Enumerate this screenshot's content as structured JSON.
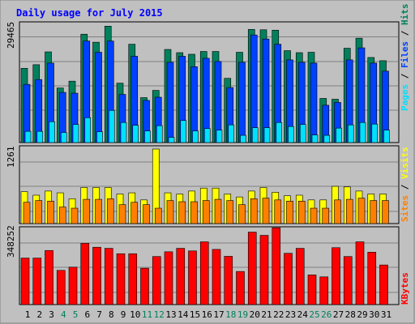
{
  "chart_data": [
    {
      "type": "bar",
      "title": "Daily usage for July 2015",
      "panel": "Pages / Files / Hits",
      "categories": [
        "1",
        "2",
        "3",
        "4",
        "5",
        "6",
        "7",
        "8",
        "9",
        "10",
        "11",
        "12",
        "13",
        "14",
        "15",
        "16",
        "17",
        "18",
        "19",
        "20",
        "21",
        "22",
        "23",
        "24",
        "25",
        "26",
        "27",
        "28",
        "29",
        "30",
        "31"
      ],
      "weekend_days": [
        "4",
        "5",
        "11",
        "12",
        "18",
        "19",
        "25",
        "26"
      ],
      "ymax_label": "29465",
      "ylim": [
        0,
        29465
      ],
      "grid": true,
      "series": [
        {
          "name": "Hits",
          "color": "#00805c",
          "values": [
            18500,
            19400,
            22600,
            13600,
            15300,
            27000,
            25000,
            29000,
            14800,
            24500,
            11200,
            13000,
            23200,
            22400,
            22000,
            22700,
            22700,
            16000,
            22500,
            28200,
            28100,
            28000,
            22900,
            22400,
            22500,
            11000,
            10800,
            23500,
            26000,
            21200,
            20400
          ]
        },
        {
          "name": "Files",
          "color": "#0040ff",
          "values": [
            14500,
            15700,
            19800,
            12500,
            12300,
            25300,
            22500,
            25300,
            12000,
            21500,
            10500,
            11300,
            20000,
            21500,
            18900,
            21000,
            20200,
            13700,
            20000,
            26800,
            25800,
            24500,
            20600,
            20000,
            19800,
            9300,
            10000,
            20600,
            23600,
            19800,
            17800
          ]
        },
        {
          "name": "Pages",
          "color": "#00e0ff",
          "values": [
            2800,
            2800,
            5200,
            2500,
            4500,
            6200,
            2700,
            8000,
            5000,
            4300,
            2900,
            4200,
            1300,
            5500,
            2900,
            3500,
            3100,
            4400,
            1800,
            3700,
            3700,
            5000,
            4000,
            4500,
            1900,
            1800,
            3600,
            4400,
            5000,
            4600,
            3100
          ]
        }
      ]
    },
    {
      "type": "bar",
      "panel": "Sites / Visits",
      "categories": [
        "1",
        "2",
        "3",
        "4",
        "5",
        "6",
        "7",
        "8",
        "9",
        "10",
        "11",
        "12",
        "13",
        "14",
        "15",
        "16",
        "17",
        "18",
        "19",
        "20",
        "21",
        "22",
        "23",
        "24",
        "25",
        "26",
        "27",
        "28",
        "29",
        "30",
        "31"
      ],
      "ymax_label": "1261",
      "ylim": [
        0,
        1261
      ],
      "grid": true,
      "series": [
        {
          "name": "Visits",
          "color": "#ffff00",
          "values": [
            540,
            480,
            550,
            520,
            420,
            610,
            610,
            610,
            500,
            520,
            400,
            1261,
            520,
            500,
            550,
            600,
            600,
            500,
            450,
            550,
            610,
            530,
            470,
            480,
            400,
            400,
            630,
            620,
            550,
            500,
            500
          ]
        },
        {
          "name": "Sites",
          "color": "#ff8000",
          "values": [
            360,
            390,
            380,
            280,
            260,
            410,
            410,
            420,
            320,
            360,
            320,
            260,
            390,
            370,
            370,
            390,
            410,
            390,
            320,
            420,
            430,
            400,
            380,
            380,
            260,
            260,
            400,
            410,
            430,
            390,
            390
          ]
        }
      ]
    },
    {
      "type": "bar",
      "panel": "KBytes",
      "categories": [
        "1",
        "2",
        "3",
        "4",
        "5",
        "6",
        "7",
        "8",
        "9",
        "10",
        "11",
        "12",
        "13",
        "14",
        "15",
        "16",
        "17",
        "18",
        "19",
        "20",
        "21",
        "22",
        "23",
        "24",
        "25",
        "26",
        "27",
        "28",
        "29",
        "30",
        "31"
      ],
      "ymax_label": "348252",
      "ylim": [
        0,
        348252
      ],
      "grid": true,
      "series": [
        {
          "name": "KBytes",
          "color": "#ff0000",
          "values": [
            215000,
            215000,
            250000,
            158000,
            173000,
            283000,
            265000,
            260000,
            235000,
            235000,
            168000,
            222000,
            244000,
            260000,
            248000,
            290000,
            255000,
            223000,
            153000,
            335000,
            320000,
            355000,
            237000,
            260000,
            137000,
            128000,
            263000,
            222000,
            290000,
            242000,
            183000
          ]
        }
      ]
    }
  ],
  "legend_top": {
    "pages": "Pages",
    "sep1": " / ",
    "files": "Files",
    "sep2": " / ",
    "hits": "Hits"
  },
  "legend_mid": {
    "sites": "Sites",
    "sep": " / ",
    "visits": "Visits"
  },
  "legend_bot": {
    "kbytes": "KBytes"
  },
  "colors": {
    "background": "#c0c0c0",
    "title": "#0000ff",
    "weekday": "#000000",
    "weekend": "#00805c",
    "sep": "#000000",
    "grid": "#808080"
  }
}
